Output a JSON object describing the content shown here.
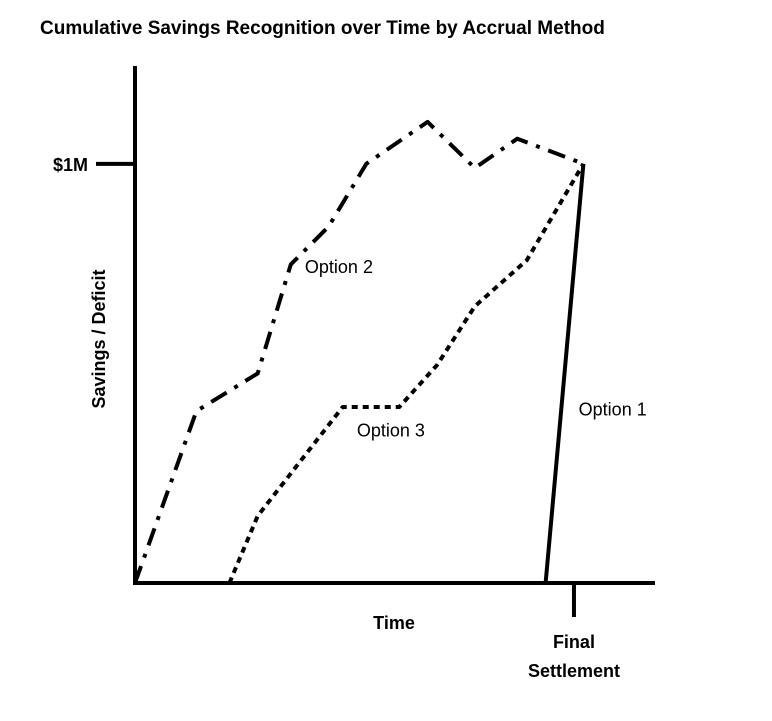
{
  "chart_data": {
    "type": "line",
    "title": "Cumulative Savings Recognition over Time by Accrual Method",
    "xlabel": "Time",
    "ylabel": "Savings / Deficit",
    "xlim": [
      0,
      100
    ],
    "ylim": [
      0,
      1.2
    ],
    "grid": false,
    "legend": "none",
    "y_ticks": [
      {
        "value": 1.0,
        "label": "$1M"
      }
    ],
    "x_ticks": [
      {
        "value": 93,
        "label_lines": [
          "Final",
          "Settlement"
        ]
      }
    ],
    "series": [
      {
        "name": "Option 2",
        "style": "dash-dot",
        "label_at": [
          36,
          0.74
        ],
        "points": [
          [
            0,
            0
          ],
          [
            13,
            0.41
          ],
          [
            26,
            0.5
          ],
          [
            33,
            0.76
          ],
          [
            41,
            0.85
          ],
          [
            49,
            1.0
          ],
          [
            62,
            1.1
          ],
          [
            72,
            0.99
          ],
          [
            81,
            1.06
          ],
          [
            95,
            1.0
          ]
        ]
      },
      {
        "name": "Option 3",
        "style": "dotted",
        "label_at": [
          47,
          0.35
        ],
        "points": [
          [
            20,
            0
          ],
          [
            26,
            0.16
          ],
          [
            44,
            0.42
          ],
          [
            56,
            0.42
          ],
          [
            64,
            0.52
          ],
          [
            72,
            0.66
          ],
          [
            83,
            0.77
          ],
          [
            95,
            1.0
          ]
        ]
      },
      {
        "name": "Option 1",
        "style": "solid",
        "label_at": [
          94,
          0.4
        ],
        "points": [
          [
            87,
            0
          ],
          [
            95,
            1.0
          ]
        ]
      }
    ]
  }
}
